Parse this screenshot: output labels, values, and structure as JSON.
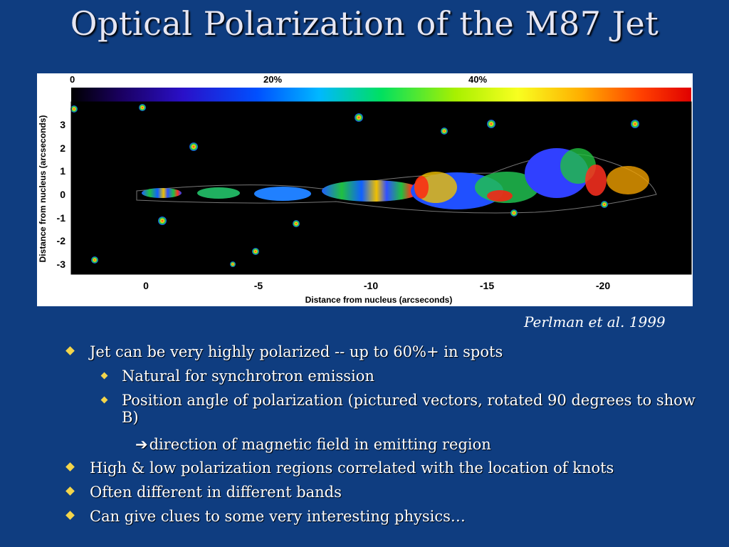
{
  "title": "Optical Polarization of the M87 Jet",
  "figure": {
    "colorbar_labels": [
      "0",
      "20%",
      "40%"
    ],
    "y_axis_label": "Distance from nucleus (arcseconds)",
    "y_ticks": [
      "3",
      "2",
      "1",
      "0",
      "-1",
      "-2",
      "-3"
    ],
    "x_axis_label": "Distance from nucleus (arcseconds)",
    "x_ticks": [
      "0",
      "-5",
      "-10",
      "-15",
      "-20"
    ],
    "colors": {
      "background": "#0f3d80",
      "bullet": "#f3d54b",
      "image_bg": "#000000",
      "title": "#e6e6f2"
    }
  },
  "credit": "Perlman et al. 1999",
  "bullets": [
    {
      "text": "Jet can be very highly polarized -- up to 60%+ in spots",
      "level": 1
    },
    {
      "text": "Natural for synchrotron emission",
      "level": 2
    },
    {
      "text": "Position angle of polarization (pictured vectors, rotated 90 degrees to show B)",
      "level": 2
    },
    {
      "text": "direction of magnetic field in emitting region",
      "level": 3,
      "prefix_icon": "right-arrow-icon"
    },
    {
      "text": "High & low polarization regions correlated with the location of knots",
      "level": 1
    },
    {
      "text": "Often different in different bands",
      "level": 1
    },
    {
      "text": "Can give clues to some very interesting physics…",
      "level": 1
    }
  ]
}
